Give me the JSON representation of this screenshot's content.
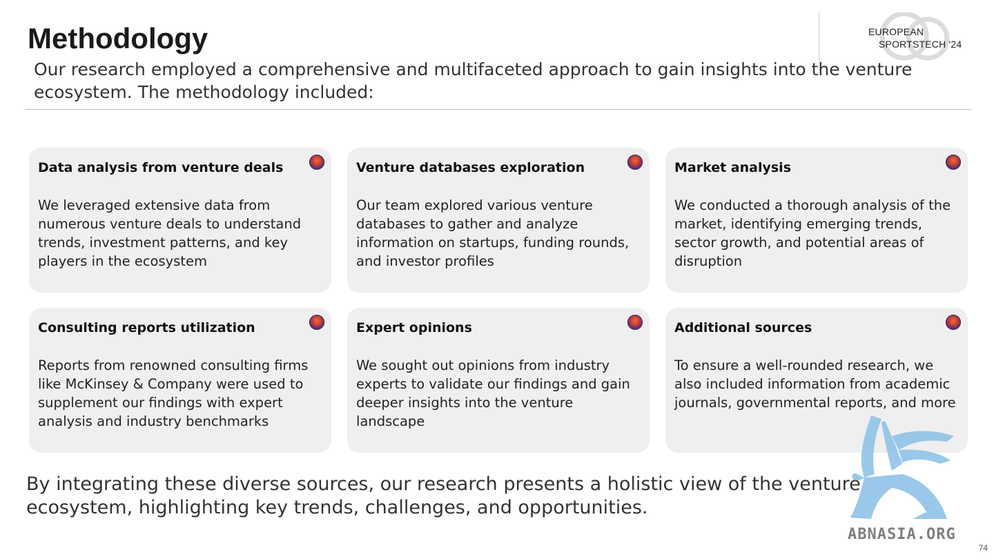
{
  "header": {
    "title": "Methodology",
    "intro": "Our research employed a comprehensive and multifaceted approach to gain insights into the venture ecosystem.  The methodology included:"
  },
  "logo": {
    "line1": "EUROPEAN",
    "line2": "SPORTSTECH '24"
  },
  "cards": [
    {
      "title": "Data analysis from venture deals",
      "body": "We leveraged extensive data from numerous venture deals to understand trends, investment patterns, and key players in the ecosystem",
      "icon": "gradient-circle-icon"
    },
    {
      "title": "Venture databases exploration",
      "body": "Our team explored various venture databases to gather and analyze information on startups, funding rounds, and investor profiles",
      "icon": "gradient-circle-icon"
    },
    {
      "title": "Market analysis",
      "body": "We conducted a thorough analysis of the market, identifying emerging trends, sector growth, and potential areas of disruption",
      "icon": "gradient-circle-icon"
    },
    {
      "title": "Consulting reports utilization",
      "body": "Reports from renowned consulting firms like McKinsey & Company were used to supplement our findings with expert analysis and industry benchmarks",
      "icon": "gradient-circle-icon"
    },
    {
      "title": "Expert opinions",
      "body": "We sought out opinions from industry experts to validate our findings and gain deeper insights into the venture landscape",
      "icon": "gradient-circle-icon"
    },
    {
      "title": "Additional sources",
      "body": "To ensure a well-rounded research, we also included information from academic journals, governmental reports, and more",
      "icon": "gradient-circle-icon"
    }
  ],
  "conclusion": "By integrating these diverse sources, our research presents a holistic view of the venture ecosystem, highlighting key trends, challenges, and opportunities.",
  "watermark": "ABNASIA.ORG",
  "page_number": "74",
  "colors": {
    "card_background": "#efefef",
    "icon_gradient": [
      "#f06b35",
      "#7a2a6b",
      "#2a2f6f"
    ],
    "griffin": "#8fc3e8",
    "text": "#1a1a1a"
  }
}
